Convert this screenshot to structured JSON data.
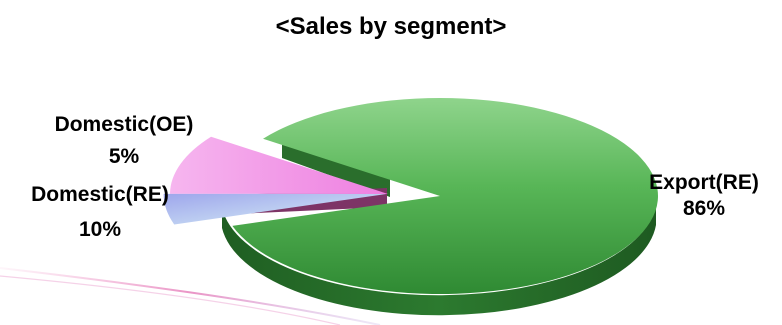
{
  "chart_data": {
    "type": "pie",
    "title": "<Sales by segment>",
    "slices": [
      {
        "name": "Export(RE)",
        "value": 86,
        "value_label": "86%",
        "color": "#3f9a42",
        "exploded": false
      },
      {
        "name": "Domestic(RE)",
        "value": 10,
        "value_label": "10%",
        "color": "#f39be6",
        "exploded": true
      },
      {
        "name": "Domestic(OE)",
        "value": 5,
        "value_label": "5%",
        "color": "#b7bdf2",
        "exploded": true
      }
    ],
    "style": "3d-exploded"
  }
}
